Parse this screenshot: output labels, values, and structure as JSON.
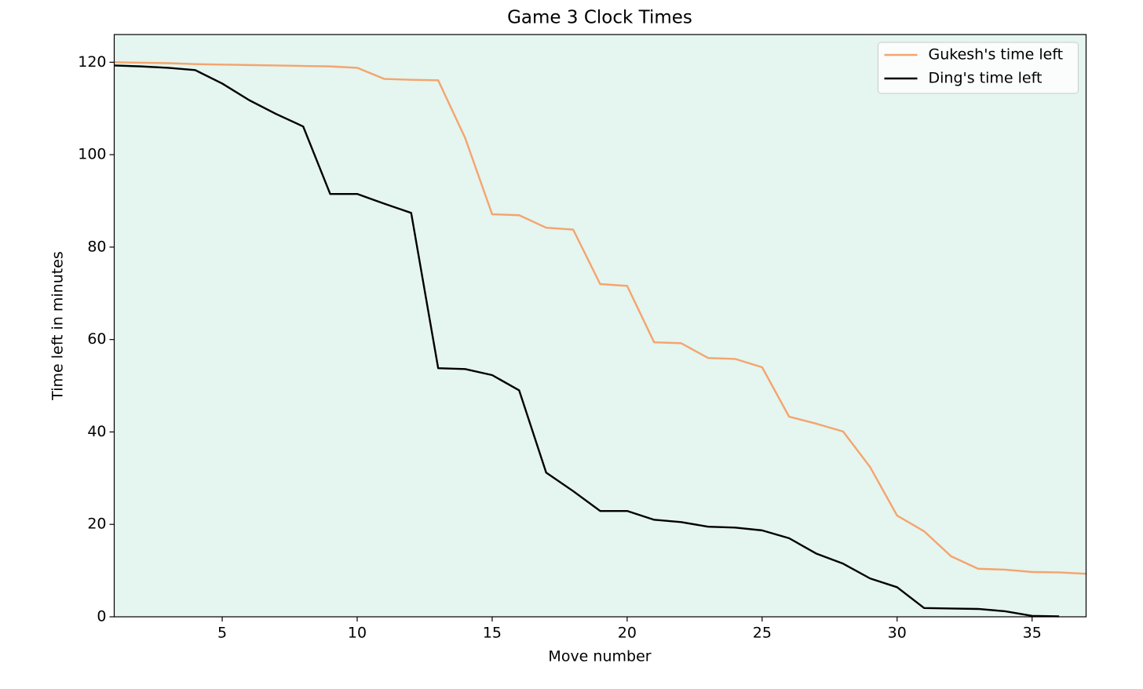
{
  "chart_data": {
    "type": "line",
    "title": "Game 3 Clock Times",
    "xlabel": "Move number",
    "ylabel": "Time left in minutes",
    "x": [
      1,
      2,
      3,
      4,
      5,
      6,
      7,
      8,
      9,
      10,
      11,
      12,
      13,
      14,
      15,
      16,
      17,
      18,
      19,
      20,
      21,
      22,
      23,
      24,
      25,
      26,
      27,
      28,
      29,
      30,
      31,
      32,
      33,
      34,
      35,
      36,
      37
    ],
    "series": [
      {
        "name": "Gukesh's time left",
        "color": "#f4a46e",
        "values": [
          120,
          119.9,
          119.8,
          119.6,
          119.5,
          119.4,
          119.3,
          119.2,
          119.1,
          118.8,
          116.4,
          116.2,
          116.1,
          103.6,
          87.1,
          86.9,
          84.2,
          83.8,
          72.0,
          71.6,
          59.4,
          59.2,
          56.0,
          55.8,
          54.0,
          43.3,
          41.8,
          40.1,
          32.4,
          21.9,
          18.5,
          13.1,
          10.4,
          10.2,
          9.7,
          9.6,
          9.3
        ]
      },
      {
        "name": "Ding's time left",
        "color": "#000000",
        "values": [
          119.3,
          119.1,
          118.8,
          118.3,
          115.4,
          111.8,
          108.8,
          106.1,
          91.5,
          91.5,
          89.4,
          87.4,
          53.8,
          53.6,
          52.3,
          49.0,
          31.2,
          27.2,
          22.9,
          22.9,
          21.0,
          20.5,
          19.5,
          19.3,
          18.7,
          17.0,
          13.7,
          11.5,
          8.3,
          6.4,
          1.9,
          1.8,
          1.7,
          1.2,
          0.2,
          0.1,
          null
        ]
      }
    ],
    "xlim": [
      1,
      37
    ],
    "xticks": [
      5,
      10,
      15,
      20,
      25,
      30,
      35
    ],
    "ylim": [
      0,
      126
    ],
    "yticks": [
      0,
      20,
      40,
      60,
      80,
      100,
      120
    ],
    "background": "#e5f5ef",
    "legend": "upper-right"
  }
}
